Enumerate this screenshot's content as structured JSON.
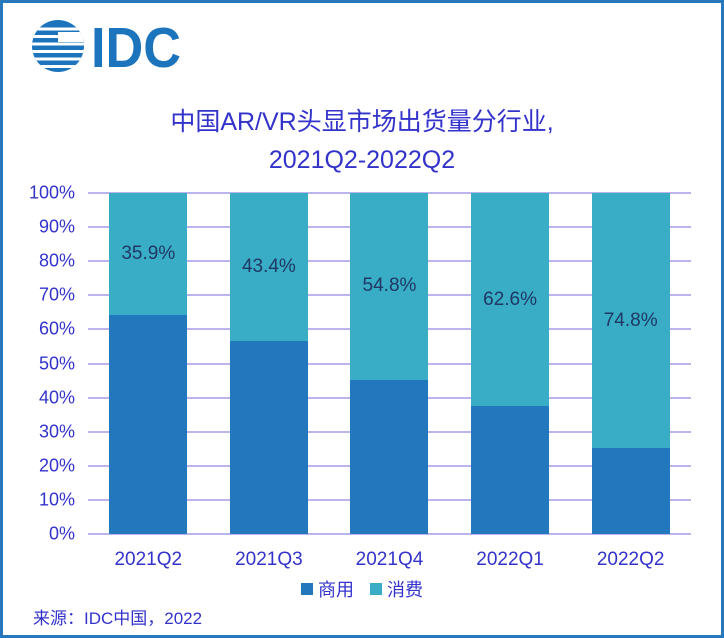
{
  "logo": {
    "text": "IDC",
    "icon": "striped-globe-icon",
    "color": "#1C75BC"
  },
  "title": {
    "line1": "中国AR/VR头显市场出货量分行业,",
    "line2": "2021Q2-2022Q2"
  },
  "source": "来源：IDC中国，2022",
  "legend": {
    "items": [
      {
        "label": "商用",
        "color": "#2277BD"
      },
      {
        "label": "消费",
        "color": "#39ACC6"
      }
    ]
  },
  "chart_data": {
    "type": "bar",
    "variant": "stacked-100-percent",
    "title": "中国AR/VR头显市场出货量分行业, 2021Q2-2022Q2",
    "categories": [
      "2021Q2",
      "2021Q3",
      "2021Q4",
      "2022Q1",
      "2022Q2"
    ],
    "series": [
      {
        "name": "商用",
        "color": "#2277BD",
        "values": [
          64.1,
          56.6,
          45.2,
          37.4,
          25.2
        ]
      },
      {
        "name": "消费",
        "color": "#39ACC6",
        "values": [
          35.9,
          43.4,
          54.8,
          62.6,
          74.8
        ],
        "data_labels": [
          "35.9%",
          "43.4%",
          "54.8%",
          "62.6%",
          "74.8%"
        ]
      }
    ],
    "ylim": [
      0,
      100
    ],
    "y_ticks": [
      "0%",
      "10%",
      "20%",
      "30%",
      "40%",
      "50%",
      "60%",
      "70%",
      "80%",
      "90%",
      "100%"
    ],
    "grid": true,
    "legend_position": "bottom"
  },
  "colors": {
    "title_text": "#3333CC",
    "axis_text": "#3333CC",
    "data_label_text": "#1F3864",
    "gridline": "#ABA3E8",
    "frame_border": "#2878BE",
    "background": "#FFFFFF"
  }
}
